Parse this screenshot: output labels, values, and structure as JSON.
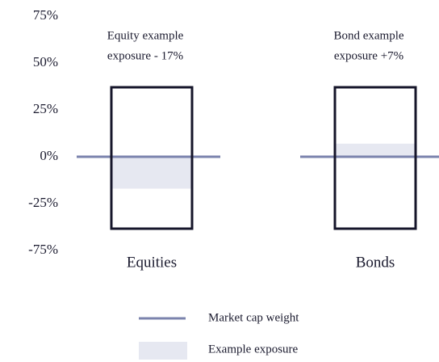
{
  "chart_data": {
    "type": "bar",
    "categories": [
      "Equities",
      "Bonds"
    ],
    "series": [
      {
        "name": "Example exposure",
        "color": "#e6e8f1",
        "values": [
          -17,
          7
        ]
      }
    ],
    "reference_line": {
      "name": "Market cap weight",
      "value": 0,
      "color": "#7b83ad"
    },
    "annotations": [
      [
        "Equity example",
        "exposure - 17%"
      ],
      [
        "Bond example",
        "exposure +7%"
      ]
    ],
    "ylim": [
      -62,
      75
    ],
    "yticks": [
      {
        "value": 75,
        "label": "75%"
      },
      {
        "value": 50,
        "label": "50%"
      },
      {
        "value": 25,
        "label": "25%"
      },
      {
        "value": 0,
        "label": "0%"
      },
      {
        "value": -25,
        "label": "-25%"
      }
    ],
    "y_bottom_label": "-75%",
    "box_color": "#15152a"
  }
}
